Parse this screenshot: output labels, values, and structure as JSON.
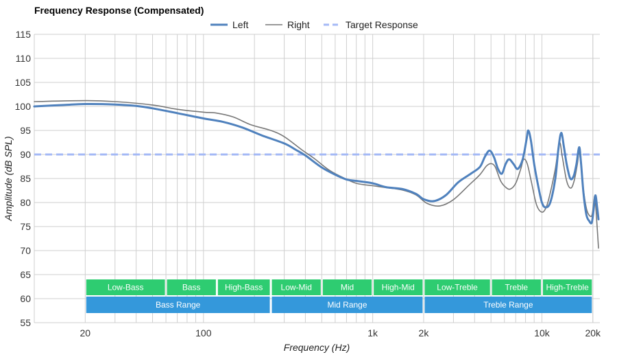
{
  "chart_data": {
    "type": "line",
    "title": "Frequency Response (Compensated)",
    "xlabel": "Frequency (Hz)",
    "ylabel": "Amplitude (dB SPL)",
    "x_scale": "log",
    "xlim": [
      10,
      22000
    ],
    "ylim": [
      55,
      115
    ],
    "yticks": [
      55,
      60,
      65,
      70,
      75,
      80,
      85,
      90,
      95,
      100,
      105,
      110,
      115
    ],
    "xticks": [
      {
        "value": 20,
        "label": "20"
      },
      {
        "value": 100,
        "label": "100"
      },
      {
        "value": 1000,
        "label": "1k"
      },
      {
        "value": 2000,
        "label": "2k"
      },
      {
        "value": 10000,
        "label": "10k"
      },
      {
        "value": 20000,
        "label": "20k"
      }
    ],
    "grid": true,
    "legend_position": "top-center",
    "series": [
      {
        "name": "Left",
        "color": "#4f81bd",
        "style": "solid",
        "points": [
          [
            10,
            100
          ],
          [
            15,
            100.3
          ],
          [
            20,
            100.5
          ],
          [
            30,
            100.4
          ],
          [
            40,
            100.1
          ],
          [
            50,
            99.6
          ],
          [
            70,
            98.6
          ],
          [
            100,
            97.5
          ],
          [
            130,
            96.8
          ],
          [
            170,
            95.6
          ],
          [
            220,
            94
          ],
          [
            300,
            92.3
          ],
          [
            350,
            91
          ],
          [
            400,
            89.8
          ],
          [
            500,
            87.3
          ],
          [
            600,
            85.8
          ],
          [
            700,
            84.8
          ],
          [
            800,
            84.5
          ],
          [
            1000,
            84
          ],
          [
            1200,
            83.2
          ],
          [
            1500,
            82.8
          ],
          [
            1800,
            81.8
          ],
          [
            2000,
            80.7
          ],
          [
            2300,
            80.3
          ],
          [
            2700,
            81.5
          ],
          [
            3200,
            84.2
          ],
          [
            3800,
            86
          ],
          [
            4300,
            87.4
          ],
          [
            4600,
            89.5
          ],
          [
            4900,
            90.8
          ],
          [
            5200,
            89.5
          ],
          [
            5500,
            87
          ],
          [
            5800,
            86
          ],
          [
            6100,
            88
          ],
          [
            6400,
            89
          ],
          [
            6800,
            88
          ],
          [
            7200,
            87
          ],
          [
            7700,
            89
          ],
          [
            8100,
            93
          ],
          [
            8300,
            95
          ],
          [
            8600,
            93
          ],
          [
            9000,
            88
          ],
          [
            9500,
            83.5
          ],
          [
            10000,
            80
          ],
          [
            10500,
            79
          ],
          [
            11200,
            80
          ],
          [
            12000,
            85
          ],
          [
            12500,
            91
          ],
          [
            13000,
            94.5
          ],
          [
            13500,
            91.5
          ],
          [
            14000,
            88
          ],
          [
            14700,
            85
          ],
          [
            15400,
            85.5
          ],
          [
            16000,
            88
          ],
          [
            16600,
            91.5
          ],
          [
            17000,
            88.5
          ],
          [
            17600,
            82
          ],
          [
            18300,
            77.5
          ],
          [
            19000,
            76.2
          ],
          [
            19700,
            75.8
          ],
          [
            20200,
            78.5
          ],
          [
            20700,
            81.5
          ],
          [
            21200,
            79
          ],
          [
            21600,
            76.5
          ]
        ]
      },
      {
        "name": "Right",
        "color": "#777777",
        "style": "solid",
        "points": [
          [
            10,
            101
          ],
          [
            20,
            101.2
          ],
          [
            30,
            101
          ],
          [
            50,
            100.3
          ],
          [
            70,
            99.4
          ],
          [
            100,
            98.8
          ],
          [
            120,
            98.6
          ],
          [
            150,
            97.8
          ],
          [
            190,
            96.2
          ],
          [
            250,
            95
          ],
          [
            300,
            93.7
          ],
          [
            380,
            91
          ],
          [
            450,
            89.2
          ],
          [
            550,
            86.8
          ],
          [
            650,
            85.4
          ],
          [
            800,
            84
          ],
          [
            1000,
            83.5
          ],
          [
            1200,
            83.1
          ],
          [
            1500,
            82.6
          ],
          [
            1800,
            81.6
          ],
          [
            2100,
            79.8
          ],
          [
            2500,
            79.3
          ],
          [
            3000,
            80.6
          ],
          [
            3700,
            83.6
          ],
          [
            4300,
            85.8
          ],
          [
            4700,
            87.6
          ],
          [
            5000,
            88.1
          ],
          [
            5300,
            87.4
          ],
          [
            5700,
            84.5
          ],
          [
            6100,
            83.2
          ],
          [
            6500,
            82.8
          ],
          [
            7000,
            84
          ],
          [
            7500,
            87
          ],
          [
            7800,
            89
          ],
          [
            8200,
            88
          ],
          [
            8700,
            84
          ],
          [
            9300,
            79.5
          ],
          [
            10000,
            78
          ],
          [
            10600,
            79
          ],
          [
            11200,
            82
          ],
          [
            12000,
            87
          ],
          [
            12700,
            92.4
          ],
          [
            13200,
            89.5
          ],
          [
            14000,
            84.5
          ],
          [
            14800,
            83
          ],
          [
            15500,
            84.5
          ],
          [
            16200,
            88
          ],
          [
            16600,
            90.5
          ],
          [
            17100,
            87
          ],
          [
            17700,
            82
          ],
          [
            18400,
            78.5
          ],
          [
            19200,
            77.2
          ],
          [
            19800,
            77.5
          ],
          [
            20300,
            80.5
          ],
          [
            20600,
            81
          ],
          [
            21100,
            76
          ],
          [
            21600,
            70.5
          ]
        ]
      },
      {
        "name": "Target Response",
        "color": "#a4b9f6",
        "style": "dashed",
        "points": [
          [
            10,
            90
          ],
          [
            22000,
            90
          ]
        ]
      }
    ],
    "bands": {
      "top_row": [
        {
          "label": "Low-Bass",
          "from": 20,
          "to": 60
        },
        {
          "label": "Bass",
          "from": 60,
          "to": 120
        },
        {
          "label": "High-Bass",
          "from": 120,
          "to": 250
        },
        {
          "label": "Low-Mid",
          "from": 250,
          "to": 500
        },
        {
          "label": "Mid",
          "from": 500,
          "to": 1000
        },
        {
          "label": "High-Mid",
          "from": 1000,
          "to": 2000
        },
        {
          "label": "Low-Treble",
          "from": 2000,
          "to": 5000
        },
        {
          "label": "Treble",
          "from": 5000,
          "to": 10000
        },
        {
          "label": "High-Treble",
          "from": 10000,
          "to": 20000
        }
      ],
      "bottom_row": [
        {
          "label": "Bass Range",
          "from": 20,
          "to": 250
        },
        {
          "label": "Mid Range",
          "from": 250,
          "to": 2000
        },
        {
          "label": "Treble Range",
          "from": 2000,
          "to": 20000
        }
      ],
      "top_color": "#2ecc71",
      "bottom_color": "#3498db"
    }
  }
}
